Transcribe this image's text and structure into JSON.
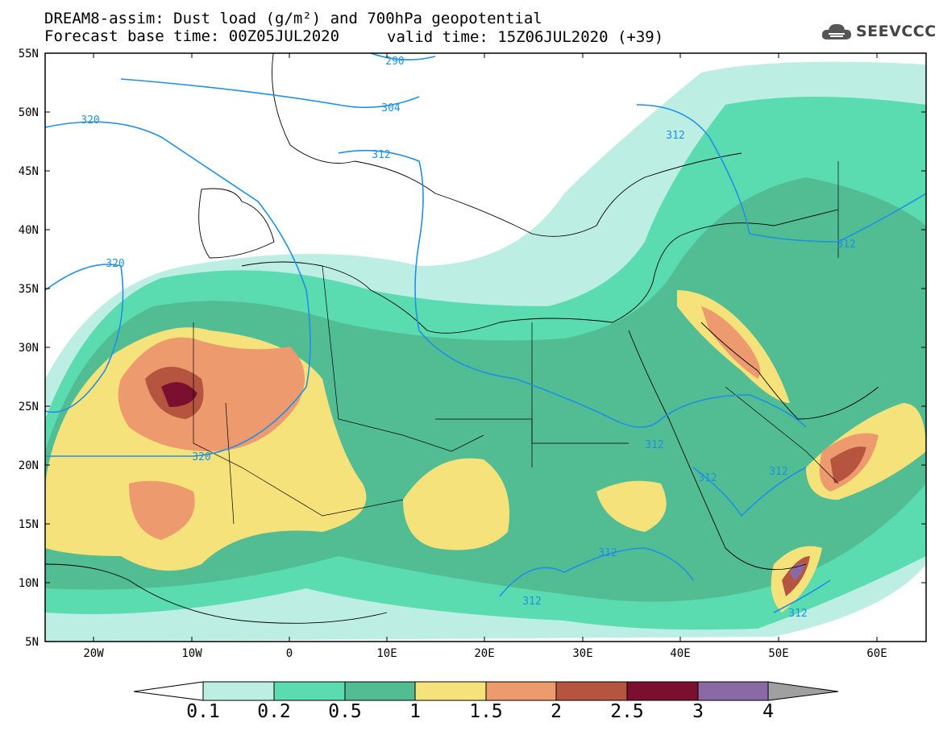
{
  "title": {
    "line1": "DREAM8-assim: Dust load (g/m²) and 700hPa geopotential",
    "line2": "Forecast base time: 00Z05JUL2020",
    "line2b": "valid time: 15Z06JUL2020 (+39)"
  },
  "logo": {
    "text": "SEEVCCC",
    "icon": "cloud-icon"
  },
  "axes": {
    "lat_labels": [
      "55N",
      "50N",
      "45N",
      "40N",
      "35N",
      "30N",
      "25N",
      "20N",
      "15N",
      "10N",
      "5N"
    ],
    "lon_labels": [
      "20W",
      "10W",
      "0",
      "10E",
      "20E",
      "30E",
      "40E",
      "50E",
      "60E"
    ]
  },
  "contour_labels": [
    "290",
    "304",
    "312",
    "320",
    "320",
    "320",
    "312",
    "312",
    "312",
    "312",
    "312",
    "312",
    "312",
    "312"
  ],
  "colorbar": {
    "labels": [
      "0.1",
      "0.2",
      "0.5",
      "1",
      "1.5",
      "2",
      "2.5",
      "3",
      "4"
    ],
    "colors": [
      "#ffffff",
      "#bdeee3",
      "#5bdcb0",
      "#52bd93",
      "#f6e27a",
      "#ec9a6e",
      "#b6553f",
      "#7b0f2f",
      "#8a6aa5",
      "#a0a0a0"
    ]
  },
  "colors": {
    "contour": "#1e90e6",
    "frame": "#000000"
  }
}
